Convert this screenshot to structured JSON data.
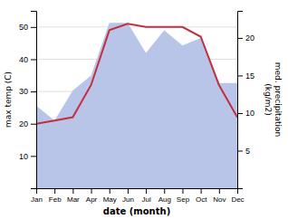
{
  "chart_data": {
    "type": "line",
    "categories": [
      "Jan",
      "Feb",
      "Mar",
      "Apr",
      "May",
      "Jun",
      "Jul",
      "Aug",
      "Sep",
      "Oct",
      "Nov",
      "Dec"
    ],
    "series": [
      {
        "type": "area",
        "axis": "y2",
        "color": "#b8c4e8",
        "values": [
          11,
          9,
          13,
          15,
          22,
          22,
          18,
          21,
          19,
          20,
          14,
          14
        ]
      },
      {
        "type": "line",
        "color": "#c03040",
        "values": [
          20,
          21,
          22,
          32,
          49,
          51,
          50,
          50,
          50,
          47,
          32,
          22
        ]
      }
    ],
    "xlabel": "date (month)",
    "ylabel": "max temp (C)",
    "y2label": "med. precipitation\n(kg/m2)",
    "ylim": [
      0,
      55
    ],
    "yticks": [
      10,
      20,
      30,
      40,
      50
    ],
    "y2lim": [
      0,
      23.6
    ],
    "y2ticks": [
      5,
      10,
      15,
      20
    ],
    "grid": true
  }
}
